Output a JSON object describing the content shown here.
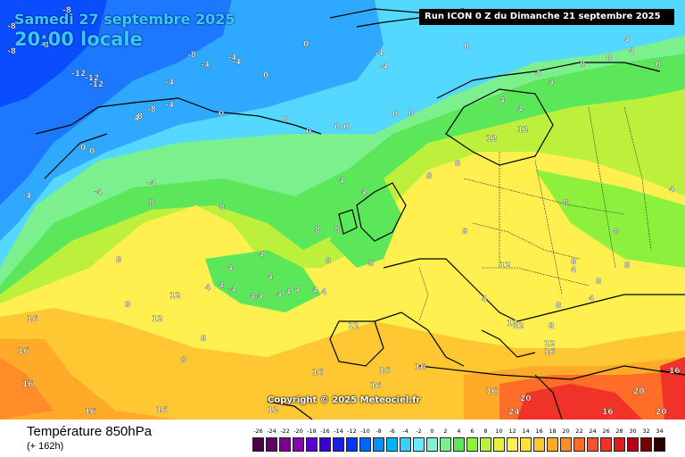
{
  "header": {
    "date": "Samedi 27 septembre 2025",
    "time": "20:00 locale",
    "run": "Run ICON 0 Z du Dimanche 21 septembre 2025"
  },
  "footer": {
    "product": "Température 850hPa",
    "lead": "(+ 162h)",
    "copyright": "Copyright © 2025 Meteociel.fr"
  },
  "legend": {
    "values": [
      "-26",
      "-24",
      "-22",
      "-20",
      "-18",
      "-16",
      "-14",
      "-12",
      "-10",
      "-8",
      "-6",
      "-4",
      "-2",
      "0",
      "2",
      "4",
      "6",
      "8",
      "10",
      "12",
      "14",
      "16",
      "18",
      "20",
      "22",
      "24",
      "26",
      "28",
      "30",
      "32",
      "34"
    ],
    "colors": [
      "#4b0047",
      "#62006a",
      "#7b008e",
      "#8a00b4",
      "#5b00c8",
      "#3a00d8",
      "#1e1ee0",
      "#0036ff",
      "#0064ff",
      "#0090ff",
      "#00b4ff",
      "#3cd0ff",
      "#6ee6ff",
      "#7ff0d0",
      "#7cf08c",
      "#5ce65a",
      "#8cf03c",
      "#bcf03c",
      "#e6f040",
      "#fff050",
      "#ffe03c",
      "#ffc832",
      "#ffaa28",
      "#ff8c28",
      "#ff6e28",
      "#ff5028",
      "#f03228",
      "#dc1e1e",
      "#b40014",
      "#780000",
      "#280000"
    ]
  },
  "map_values": [
    "-8",
    "-8",
    "-8",
    "-8",
    "-8",
    "-12",
    "-12",
    "-12",
    "-8",
    "-8",
    "-4",
    "-4",
    "-4",
    "-4",
    "-4",
    "-4",
    "-4",
    "-4",
    "-4",
    "-4",
    "-4",
    "-4",
    "0",
    "0",
    "0",
    "0",
    "0",
    "0",
    "0",
    "0",
    "0",
    "0",
    "0",
    "0",
    "0",
    "0",
    "0",
    "4",
    "4",
    "4",
    "4",
    "4",
    "4",
    "4",
    "4",
    "4",
    "4",
    "4",
    "4",
    "4",
    "4",
    "4",
    "4",
    "4",
    "4",
    "4",
    "4",
    "4",
    "4",
    "4",
    "4",
    "8",
    "8",
    "8",
    "8",
    "8",
    "8",
    "8",
    "8",
    "8",
    "8",
    "8",
    "8",
    "8",
    "8",
    "8",
    "8",
    "8",
    "8",
    "8",
    "8",
    "12",
    "12",
    "12",
    "12",
    "12",
    "12",
    "12",
    "12",
    "12",
    "12",
    "16",
    "16",
    "16",
    "16",
    "16",
    "16",
    "16",
    "16",
    "16",
    "16",
    "16",
    "16",
    "16",
    "20",
    "20",
    "20",
    "24"
  ]
}
